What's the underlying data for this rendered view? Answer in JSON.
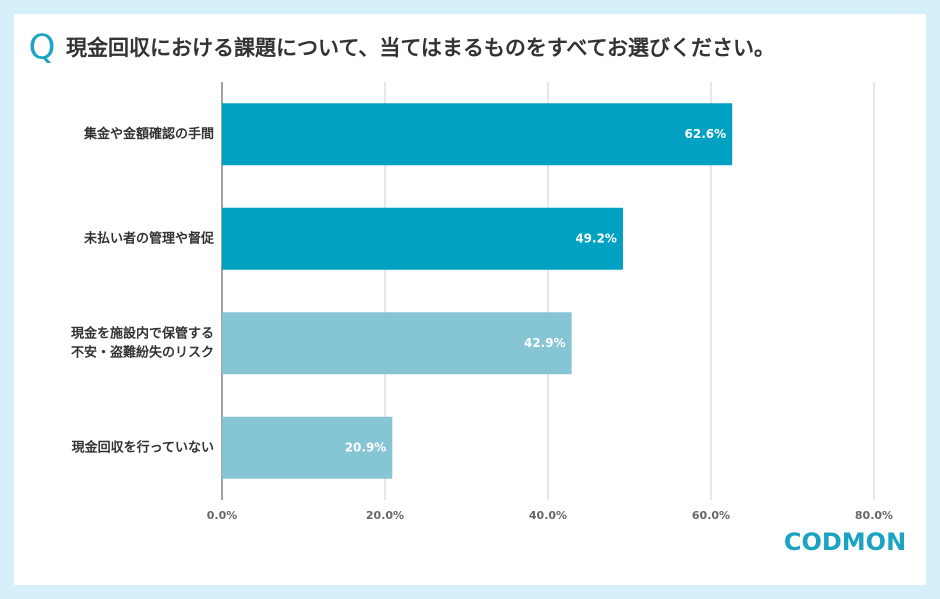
{
  "chart_data": {
    "type": "bar",
    "orientation": "horizontal",
    "title_mark": "Q",
    "title": "現金回収における課題について、当てはまるものをすべてお選びください。",
    "categories": [
      "集金や金額確認の手間",
      "未払い者の管理や督促",
      [
        "現金を施設内で保管する",
        "不安・盗難紛失のリスク"
      ],
      "現金回収を行っていない"
    ],
    "values": [
      62.6,
      49.2,
      42.9,
      20.9
    ],
    "value_labels": [
      "62.6%",
      "49.2%",
      "42.9%",
      "20.9%"
    ],
    "colors": [
      "#00a1c1",
      "#00a1c1",
      "#86c5d4",
      "#86c5d4"
    ],
    "xlim": [
      0,
      80
    ],
    "xticks": [
      {
        "value": 0,
        "label": "0.0%"
      },
      {
        "value": 20,
        "label": "20.0%"
      },
      {
        "value": 40,
        "label": "40.0%"
      },
      {
        "value": 60,
        "label": "60.0%"
      },
      {
        "value": 80,
        "label": "80.0%"
      }
    ],
    "grid": true,
    "logo": "CODMON"
  }
}
